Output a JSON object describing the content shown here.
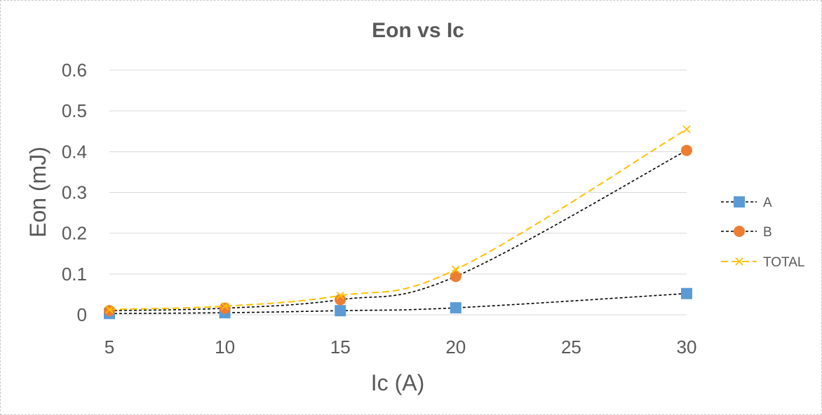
{
  "chart_data": {
    "type": "scatter",
    "title": "Eon vs Ic",
    "xlabel": "Ic (A)",
    "ylabel": "Eon (mJ)",
    "xlim": [
      5,
      30
    ],
    "ylim": [
      0,
      0.6
    ],
    "x_ticks": [
      "5",
      "10",
      "15",
      "20",
      "25",
      "30"
    ],
    "y_ticks": [
      "0",
      "0.1",
      "0.2",
      "0.3",
      "0.4",
      "0.5",
      "0.6"
    ],
    "grid": true,
    "legend_position": "right",
    "series": [
      {
        "name": "A",
        "x": [
          5,
          10,
          15,
          20,
          30
        ],
        "y": [
          0.003,
          0.005,
          0.01,
          0.017,
          0.052
        ],
        "marker": "square",
        "color": "#5b9bd5",
        "line_color": "#000000",
        "line_style": "dotted"
      },
      {
        "name": "B",
        "x": [
          5,
          10,
          15,
          20,
          30
        ],
        "y": [
          0.01,
          0.016,
          0.037,
          0.094,
          0.403
        ],
        "marker": "circle",
        "color": "#ed7d31",
        "line_color": "#000000",
        "line_style": "dotted"
      },
      {
        "name": "TOTAL",
        "x": [
          5,
          10,
          15,
          20,
          30
        ],
        "y": [
          0.013,
          0.021,
          0.047,
          0.111,
          0.455
        ],
        "marker": "x",
        "color": "#ffc000",
        "line_color": "#ffc000",
        "line_style": "dashed"
      }
    ]
  }
}
